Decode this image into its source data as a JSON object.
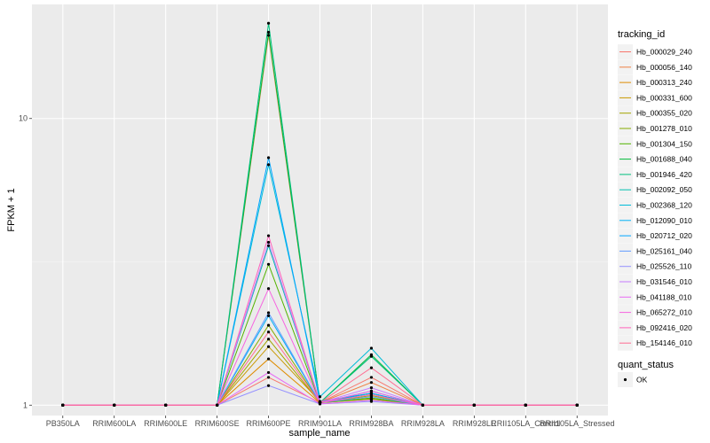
{
  "chart_data": {
    "type": "line",
    "title": "",
    "xlabel": "sample_name",
    "ylabel": "FPKM + 1",
    "y_scale": "log10",
    "ylim": [
      0.92,
      25
    ],
    "y_ticks": [
      1,
      10
    ],
    "y_tick_labels": [
      "1",
      "10"
    ],
    "grid": true,
    "legend_placement": "right",
    "categories": [
      "PB350LA",
      "RRIM600LA",
      "RRIM600LE",
      "RRIM600SE",
      "RRIM600PE",
      "RRIM901LA",
      "RRIM928BA",
      "RRIM928LA",
      "RRIM928LE",
      "RRII105LA_Control",
      "RRII105LA_Stressed"
    ],
    "legend_title": "tracking_id",
    "series": [
      {
        "name": "Hb_000029_240",
        "color": "#F8766D",
        "values": [
          1,
          1,
          1,
          1,
          1.25,
          1.02,
          1.25,
          1,
          1,
          1,
          1
        ]
      },
      {
        "name": "Hb_000056_140",
        "color": "#EE8043",
        "values": [
          1,
          1,
          1,
          1,
          19.5,
          1.02,
          1.2,
          1,
          1,
          1,
          1
        ]
      },
      {
        "name": "Hb_000313_240",
        "color": "#DE8C00",
        "values": [
          1,
          1,
          1,
          1,
          1.45,
          1.02,
          1.05,
          1,
          1,
          1,
          1
        ]
      },
      {
        "name": "Hb_000331_600",
        "color": "#C99800",
        "values": [
          1,
          1,
          1,
          1,
          1.6,
          1.03,
          1.1,
          1,
          1,
          1,
          1
        ]
      },
      {
        "name": "Hb_000355_020",
        "color": "#A3A500",
        "values": [
          1,
          1,
          1,
          1,
          1.7,
          1.02,
          1.08,
          1,
          1,
          1,
          1
        ]
      },
      {
        "name": "Hb_001278_010",
        "color": "#86AC00",
        "values": [
          1,
          1,
          1,
          1,
          1.9,
          1.02,
          1.05,
          1,
          1,
          1,
          1
        ]
      },
      {
        "name": "Hb_001304_150",
        "color": "#53B400",
        "values": [
          1,
          1,
          1,
          1,
          3.1,
          1.02,
          1.06,
          1,
          1,
          1,
          1
        ]
      },
      {
        "name": "Hb_001688_040",
        "color": "#00BA38",
        "values": [
          1,
          1,
          1,
          1,
          20,
          1.02,
          1.5,
          1,
          1,
          1,
          1
        ]
      },
      {
        "name": "Hb_001946_420",
        "color": "#00BF7D",
        "values": [
          1,
          1,
          1,
          1,
          21.5,
          1.02,
          1.48,
          1,
          1,
          1,
          1
        ]
      },
      {
        "name": "Hb_002092_050",
        "color": "#00C0AF",
        "values": [
          1,
          1,
          1,
          1,
          3.6,
          1.02,
          1.1,
          1,
          1,
          1,
          1
        ]
      },
      {
        "name": "Hb_002368_120",
        "color": "#00BCD8",
        "values": [
          1,
          1,
          1,
          1,
          6.9,
          1.07,
          1.58,
          1,
          1,
          1,
          1
        ]
      },
      {
        "name": "Hb_012090_010",
        "color": "#00B0F6",
        "values": [
          1,
          1,
          1,
          1,
          2.05,
          1.02,
          1.12,
          1,
          1,
          1,
          1
        ]
      },
      {
        "name": "Hb_020712_020",
        "color": "#00A5FF",
        "values": [
          1,
          1,
          1,
          1,
          7.3,
          1.03,
          1.1,
          1,
          1,
          1,
          1
        ]
      },
      {
        "name": "Hb_025161_040",
        "color": "#619CFF",
        "values": [
          1,
          1,
          1,
          1,
          2.1,
          1.02,
          1.07,
          1,
          1,
          1,
          1
        ]
      },
      {
        "name": "Hb_025526_110",
        "color": "#9590FF",
        "values": [
          1,
          1,
          1,
          1,
          1.17,
          1.01,
          1.03,
          1,
          1,
          1,
          1
        ]
      },
      {
        "name": "Hb_031546_010",
        "color": "#C77CFF",
        "values": [
          1,
          1,
          1,
          1,
          3.7,
          1.02,
          1.15,
          1,
          1,
          1,
          1
        ]
      },
      {
        "name": "Hb_041188_010",
        "color": "#E76BF3",
        "values": [
          1,
          1,
          1,
          1,
          1.3,
          1.01,
          1.04,
          1,
          1,
          1,
          1
        ]
      },
      {
        "name": "Hb_065272_010",
        "color": "#F763E0",
        "values": [
          1,
          1,
          1,
          1,
          2.55,
          1.02,
          1.12,
          1,
          1,
          1,
          1
        ]
      },
      {
        "name": "Hb_092416_020",
        "color": "#FF62BC",
        "values": [
          1,
          1,
          1,
          1,
          3.9,
          1.02,
          1.09,
          1,
          1,
          1,
          1
        ]
      },
      {
        "name": "Hb_154146_010",
        "color": "#FF6C91",
        "values": [
          1,
          1,
          1,
          1,
          1.8,
          1.02,
          1.35,
          1,
          1,
          1,
          1
        ]
      }
    ],
    "shape_legend": {
      "title": "quant_status",
      "entries": [
        "OK"
      ],
      "color": "#000000"
    }
  }
}
